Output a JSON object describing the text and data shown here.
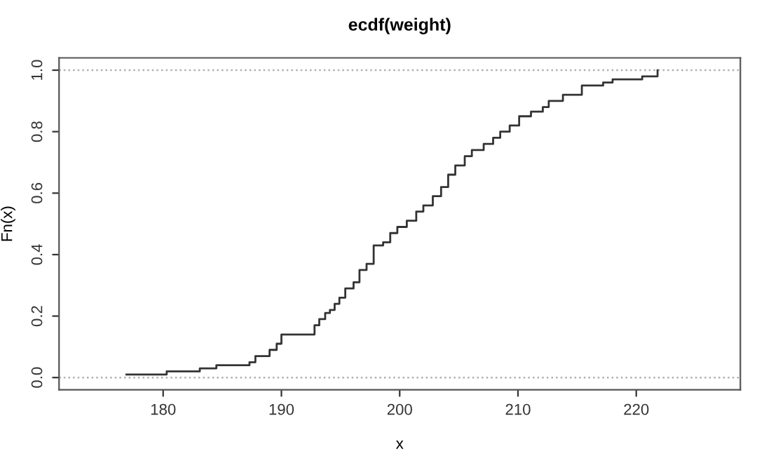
{
  "chart_data": {
    "type": "step",
    "title": "ecdf(weight)",
    "xlabel": "x",
    "ylabel": "Fn(x)",
    "xlim": [
      171.2,
      228.8
    ],
    "ylim": [
      -0.04,
      1.04
    ],
    "xticks": [
      180,
      190,
      200,
      210,
      220
    ],
    "yticks": [
      {
        "value": 0,
        "label": "0.0"
      },
      {
        "value": 0.2,
        "label": "0.2"
      },
      {
        "value": 0.4,
        "label": "0.4"
      },
      {
        "value": 0.6,
        "label": "0.6"
      },
      {
        "value": 0.8,
        "label": "0.8"
      },
      {
        "value": 1,
        "label": "1.0"
      }
    ],
    "grid": false,
    "ref_lines": [
      {
        "axis": "y",
        "value": 0,
        "color": "#b0b0b0",
        "line_style": "dotted"
      },
      {
        "axis": "y",
        "value": 1,
        "color": "#b0b0b0",
        "line_style": "dotted"
      }
    ],
    "series": [
      {
        "color": "#333333",
        "x": [
          176.9,
          180.3,
          183.1,
          184.5,
          187.3,
          187.8,
          189.0,
          189.6,
          190.0,
          192.8,
          193.2,
          193.7,
          194.1,
          194.5,
          194.9,
          195.4,
          196.1,
          196.6,
          197.2,
          197.8,
          198.6,
          199.2,
          199.8,
          200.6,
          201.4,
          202.0,
          202.8,
          203.5,
          204.1,
          204.7,
          205.5,
          206.1,
          207.1,
          207.9,
          208.5,
          209.3,
          210.1,
          211.1,
          212.1,
          212.6,
          213.8,
          215.4,
          217.2,
          218.0,
          220.5,
          221.8
        ],
        "values": [
          0.01,
          0.02,
          0.03,
          0.04,
          0.05,
          0.07,
          0.09,
          0.11,
          0.14,
          0.17,
          0.19,
          0.21,
          0.22,
          0.24,
          0.26,
          0.29,
          0.31,
          0.35,
          0.37,
          0.43,
          0.44,
          0.47,
          0.49,
          0.51,
          0.54,
          0.56,
          0.59,
          0.62,
          0.66,
          0.69,
          0.72,
          0.74,
          0.76,
          0.78,
          0.8,
          0.82,
          0.85,
          0.865,
          0.88,
          0.9,
          0.92,
          0.95,
          0.96,
          0.97,
          0.98,
          1.0
        ]
      }
    ]
  }
}
